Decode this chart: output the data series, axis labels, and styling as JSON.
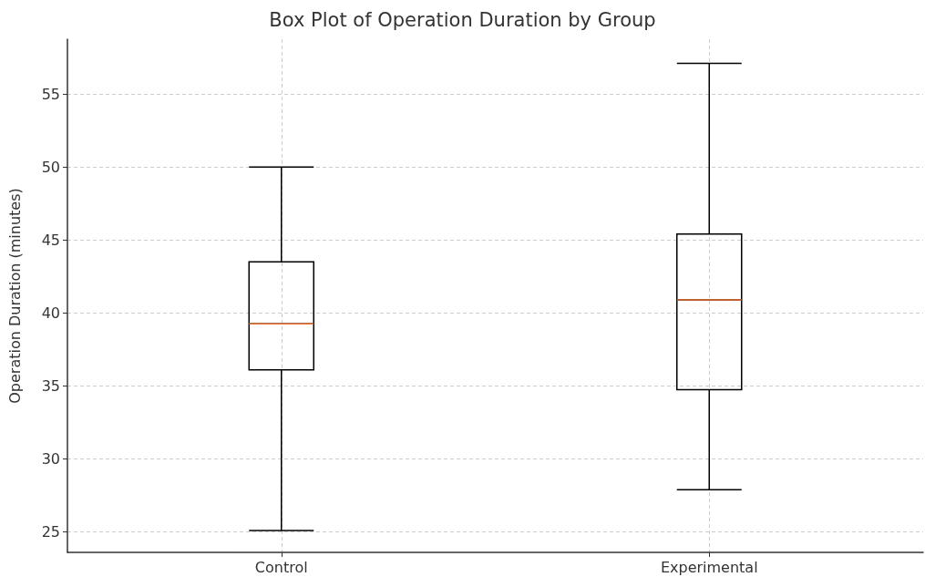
{
  "chart_data": {
    "type": "box",
    "title": "Box Plot of Operation Duration by Group",
    "ylabel": "Operation Duration (minutes)",
    "categories": [
      "Control",
      "Experimental"
    ],
    "series": [
      {
        "color": "#000000",
        "boxes": [
          {
            "low": 25.1,
            "q1": 36.1,
            "median": 39.25,
            "q3": 43.5,
            "high": 50.0
          },
          {
            "low": 27.9,
            "q1": 34.75,
            "median": 40.9,
            "q3": 45.4,
            "high": 57.1
          }
        ]
      }
    ],
    "ylim": [
      23.6,
      58.75
    ],
    "yticks": [
      25,
      30,
      35,
      40,
      45,
      50,
      55
    ],
    "grid": true
  }
}
